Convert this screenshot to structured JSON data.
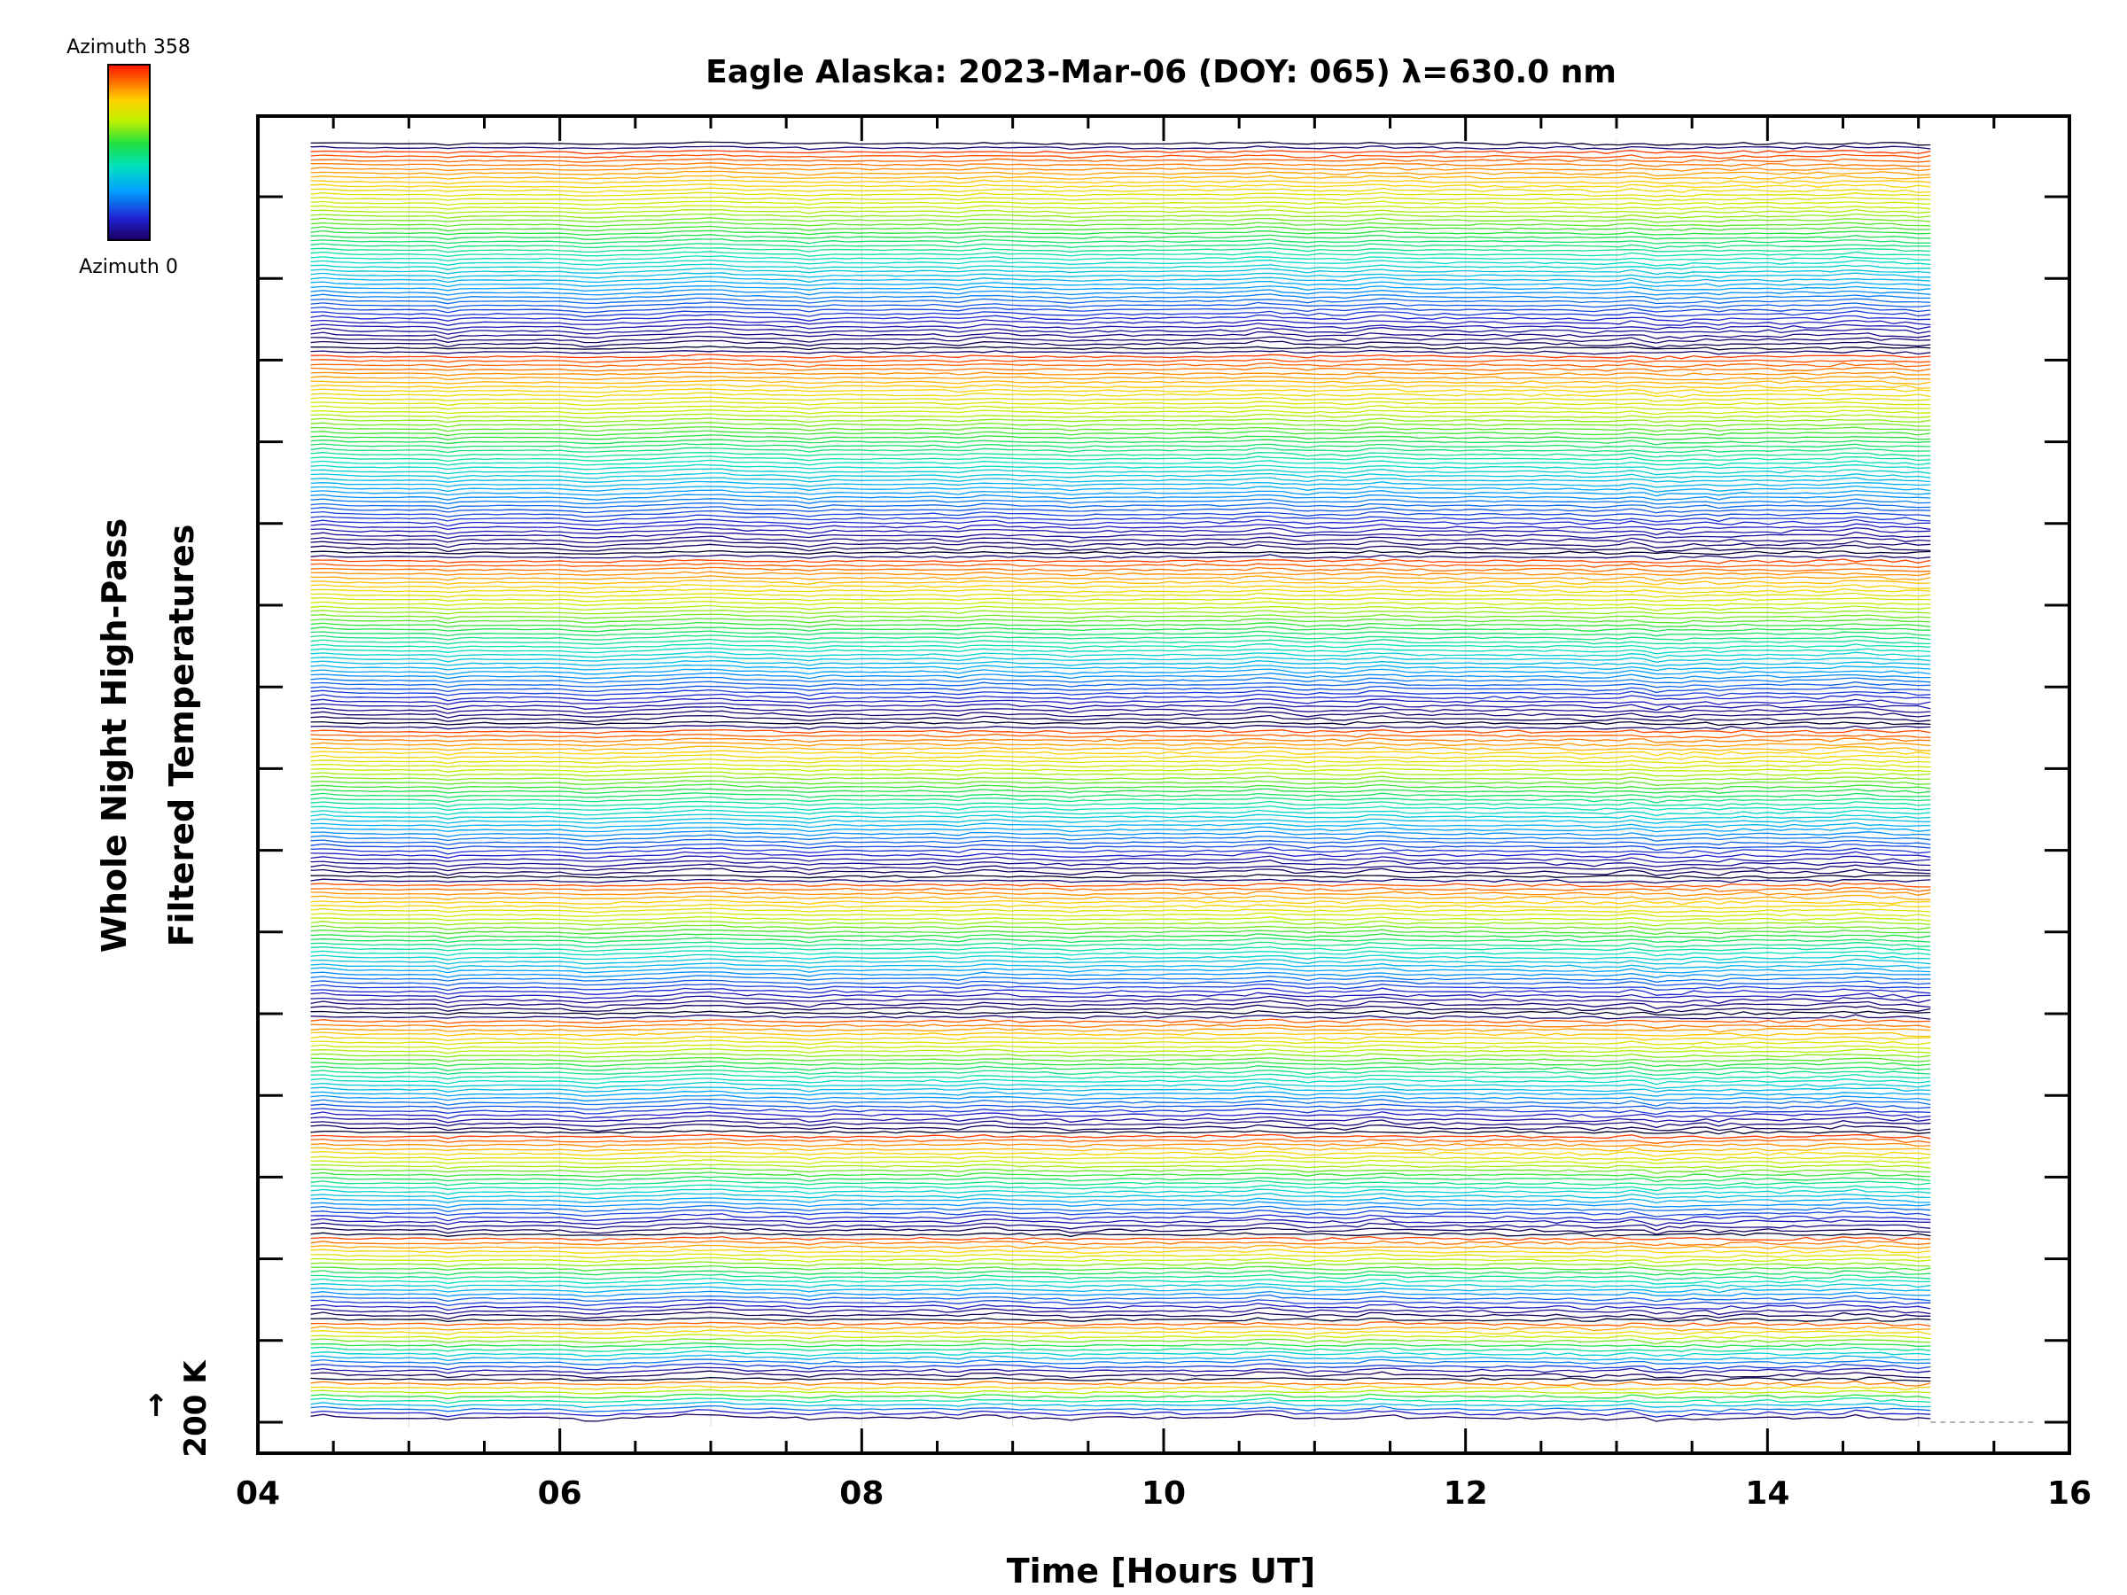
{
  "chart_data": {
    "type": "line",
    "title": "Eagle Alaska: 2023-Mar-06 (DOY: 065) λ=630.0 nm",
    "xlabel": "Time [Hours UT]",
    "ylabel_line1": "Whole Night High-Pass",
    "ylabel_line2": "Filtered Temperatures",
    "xlim": [
      4,
      16
    ],
    "x_ticks": [
      4,
      6,
      8,
      10,
      12,
      14,
      16
    ],
    "x_tick_labels": [
      "04",
      "06",
      "08",
      "10",
      "12",
      "14",
      "16"
    ],
    "data_time_range": [
      4.35,
      15.08
    ],
    "scale_label": "200 K",
    "scale_arrow": "↑",
    "colorbar": {
      "top_label": "Azimuth 358",
      "bottom_label": "Azimuth 0",
      "colormap": "rainbow",
      "min": 0,
      "max": 358
    },
    "n_traces": 300,
    "n_azimuth_rings": 8,
    "grid": true,
    "series_note": "Stacked high-pass filtered temperature traces, one per azimuth/zenith look direction, colored by azimuth (0-358)"
  }
}
